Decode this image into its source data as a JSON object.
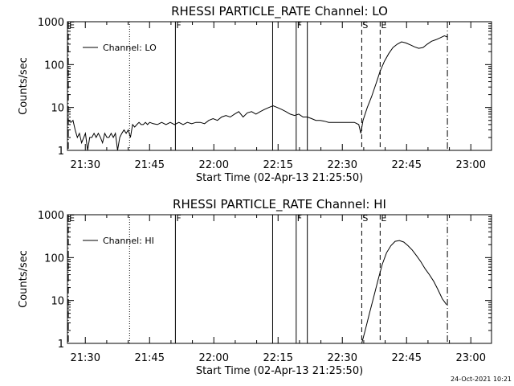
{
  "footer": {
    "timestamp": "24-Oct-2021 10:21"
  },
  "chart_data": [
    {
      "type": "line",
      "title": "RHESSI PARTICLE_RATE Channel: LO",
      "xlabel": "Start Time (02-Apr-13 21:25:50)",
      "ylabel": "Counts/sec",
      "x_units": "minutes since 21:25:50",
      "xlim": [
        0,
        99
      ],
      "ylim": [
        1,
        1000
      ],
      "yscale": "log",
      "x_ticks": [
        {
          "x": 4.17,
          "label": "21:30"
        },
        {
          "x": 19.17,
          "label": "21:45"
        },
        {
          "x": 34.17,
          "label": "22:00"
        },
        {
          "x": 49.17,
          "label": "22:15"
        },
        {
          "x": 64.17,
          "label": "22:30"
        },
        {
          "x": 79.17,
          "label": "22:45"
        },
        {
          "x": 94.17,
          "label": "23:00"
        }
      ],
      "y_ticks": [
        {
          "y": 1,
          "label": "1"
        },
        {
          "y": 10,
          "label": "10"
        },
        {
          "y": 100,
          "label": "100"
        },
        {
          "y": 1000,
          "label": "1000"
        }
      ],
      "legend": {
        "label": "Channel: LO",
        "position": "top-left"
      },
      "grid": false,
      "markers": [
        {
          "x": 0.2,
          "label": "E",
          "style": "dashdot"
        },
        {
          "x": 14.5,
          "label": "",
          "style": "dotted"
        },
        {
          "x": 25.2,
          "label": "F",
          "style": "solid"
        },
        {
          "x": 47.9,
          "label": "",
          "style": "solid"
        },
        {
          "x": 53.4,
          "label": "F",
          "style": "solid"
        },
        {
          "x": 56.0,
          "label": "",
          "style": "solid"
        },
        {
          "x": 68.7,
          "label": "S",
          "style": "dashed"
        },
        {
          "x": 73.0,
          "label": "E",
          "style": "dashed"
        },
        {
          "x": 88.7,
          "label": "",
          "style": "dashdot"
        }
      ],
      "series": [
        {
          "name": "Channel: LO",
          "points": [
            [
              0.2,
              5
            ],
            [
              0.8,
              4.5
            ],
            [
              1.3,
              5
            ],
            [
              1.8,
              3
            ],
            [
              2.3,
              2
            ],
            [
              2.8,
              2.5
            ],
            [
              3.3,
              1.5
            ],
            [
              3.8,
              2
            ],
            [
              4.2,
              2.5
            ],
            [
              4.7,
              1
            ],
            [
              5.2,
              2
            ],
            [
              5.7,
              2
            ],
            [
              6.2,
              2.5
            ],
            [
              6.7,
              2
            ],
            [
              7.2,
              2.5
            ],
            [
              7.7,
              2
            ],
            [
              8.2,
              1.5
            ],
            [
              8.7,
              2.5
            ],
            [
              9.2,
              2
            ],
            [
              9.7,
              2
            ],
            [
              10.2,
              2.5
            ],
            [
              10.7,
              2
            ],
            [
              11.2,
              2.5
            ],
            [
              11.7,
              1
            ],
            [
              12.2,
              2
            ],
            [
              12.7,
              2.5
            ],
            [
              13.2,
              3
            ],
            [
              13.7,
              2.5
            ],
            [
              14.2,
              3
            ],
            [
              14.7,
              2
            ],
            [
              15.2,
              4
            ],
            [
              15.7,
              3.5
            ],
            [
              16.2,
              4
            ],
            [
              16.7,
              4.5
            ],
            [
              17.2,
              4
            ],
            [
              17.7,
              4
            ],
            [
              18.2,
              4.5
            ],
            [
              18.7,
              4
            ],
            [
              19.2,
              4.5
            ],
            [
              20,
              4.2
            ],
            [
              21,
              4
            ],
            [
              22,
              4.5
            ],
            [
              23,
              4
            ],
            [
              24,
              4.5
            ],
            [
              25,
              4
            ],
            [
              26,
              4.5
            ],
            [
              27,
              4
            ],
            [
              28,
              4.5
            ],
            [
              29,
              4.2
            ],
            [
              30,
              4.5
            ],
            [
              31,
              4.5
            ],
            [
              32,
              4.2
            ],
            [
              33,
              5
            ],
            [
              34,
              5.5
            ],
            [
              35,
              5
            ],
            [
              36,
              6
            ],
            [
              37,
              6.5
            ],
            [
              38,
              6
            ],
            [
              39,
              7
            ],
            [
              40,
              8
            ],
            [
              41,
              6
            ],
            [
              42,
              7.5
            ],
            [
              43,
              8
            ],
            [
              44,
              7
            ],
            [
              45,
              8
            ],
            [
              46,
              9
            ],
            [
              47,
              10
            ],
            [
              48,
              11
            ],
            [
              49,
              10
            ],
            [
              50,
              9
            ],
            [
              51,
              8
            ],
            [
              52,
              7
            ],
            [
              53,
              6.5
            ],
            [
              54,
              7
            ],
            [
              55,
              6
            ],
            [
              56,
              6
            ],
            [
              57,
              5.5
            ],
            [
              58,
              5
            ],
            [
              59,
              5
            ],
            [
              60,
              4.8
            ],
            [
              61,
              4.5
            ],
            [
              62,
              4.5
            ],
            [
              63,
              4.5
            ],
            [
              64,
              4.5
            ],
            [
              65,
              4.5
            ],
            [
              66,
              4.5
            ],
            [
              67,
              4.5
            ],
            [
              68,
              4
            ],
            [
              68.5,
              2.5
            ],
            [
              69,
              5
            ],
            [
              70,
              10
            ],
            [
              71,
              18
            ],
            [
              72,
              35
            ],
            [
              73,
              70
            ],
            [
              74,
              120
            ],
            [
              75,
              180
            ],
            [
              76,
              250
            ],
            [
              77,
              300
            ],
            [
              78,
              340
            ],
            [
              79,
              320
            ],
            [
              80,
              290
            ],
            [
              81,
              260
            ],
            [
              82,
              240
            ],
            [
              83,
              250
            ],
            [
              84,
              300
            ],
            [
              85,
              350
            ],
            [
              86,
              380
            ],
            [
              87,
              420
            ],
            [
              88,
              470
            ],
            [
              88.7,
              440
            ]
          ]
        }
      ]
    },
    {
      "type": "line",
      "title": "RHESSI PARTICLE_RATE Channel: HI",
      "xlabel": "Start Time (02-Apr-13 21:25:50)",
      "ylabel": "Counts/sec",
      "x_units": "minutes since 21:25:50",
      "xlim": [
        0,
        99
      ],
      "ylim": [
        1,
        1000
      ],
      "yscale": "log",
      "x_ticks": [
        {
          "x": 4.17,
          "label": "21:30"
        },
        {
          "x": 19.17,
          "label": "21:45"
        },
        {
          "x": 34.17,
          "label": "22:00"
        },
        {
          "x": 49.17,
          "label": "22:15"
        },
        {
          "x": 64.17,
          "label": "22:30"
        },
        {
          "x": 79.17,
          "label": "22:45"
        },
        {
          "x": 94.17,
          "label": "23:00"
        }
      ],
      "y_ticks": [
        {
          "y": 1,
          "label": "1"
        },
        {
          "y": 10,
          "label": "10"
        },
        {
          "y": 100,
          "label": "100"
        },
        {
          "y": 1000,
          "label": "1000"
        }
      ],
      "legend": {
        "label": "Channel: HI",
        "position": "top-left"
      },
      "grid": false,
      "markers": [
        {
          "x": 0.2,
          "label": "E",
          "style": "dashdot"
        },
        {
          "x": 14.5,
          "label": "",
          "style": "dotted"
        },
        {
          "x": 25.2,
          "label": "F",
          "style": "solid"
        },
        {
          "x": 47.9,
          "label": "",
          "style": "solid"
        },
        {
          "x": 53.4,
          "label": "F",
          "style": "solid"
        },
        {
          "x": 56.0,
          "label": "",
          "style": "solid"
        },
        {
          "x": 68.7,
          "label": "S",
          "style": "dashed"
        },
        {
          "x": 73.0,
          "label": "E",
          "style": "dashed"
        },
        {
          "x": 88.7,
          "label": "",
          "style": "dashdot"
        }
      ],
      "series": [
        {
          "name": "Channel: HI",
          "points": [
            [
              68.7,
              1
            ],
            [
              69.5,
              2
            ],
            [
              70.5,
              5
            ],
            [
              71.5,
              12
            ],
            [
              72.5,
              30
            ],
            [
              73.5,
              70
            ],
            [
              74.5,
              130
            ],
            [
              75.5,
              190
            ],
            [
              76.5,
              240
            ],
            [
              77.5,
              250
            ],
            [
              78.5,
              230
            ],
            [
              79.5,
              190
            ],
            [
              80.5,
              150
            ],
            [
              81.5,
              110
            ],
            [
              82.5,
              80
            ],
            [
              83.5,
              55
            ],
            [
              84.5,
              40
            ],
            [
              85.5,
              28
            ],
            [
              86.5,
              18
            ],
            [
              87.5,
              11
            ],
            [
              88.5,
              8
            ]
          ]
        }
      ]
    }
  ]
}
